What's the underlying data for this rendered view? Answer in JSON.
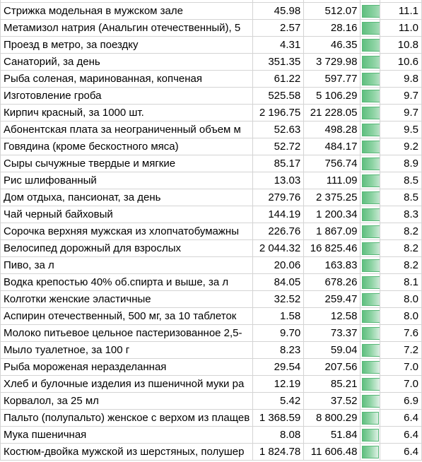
{
  "table": {
    "rows": [
      {
        "name": "Стрижка модельная в мужском зале",
        "v1": "45.98",
        "v2": "512.07",
        "ratio": 11.1,
        "ratio_label": "11.1"
      },
      {
        "name": "Метамизол натрия (Анальгин отечественный), 5",
        "v1": "2.57",
        "v2": "28.16",
        "ratio": 11.0,
        "ratio_label": "11.0"
      },
      {
        "name": "Проезд в метро, за поездку",
        "v1": "4.31",
        "v2": "46.35",
        "ratio": 10.8,
        "ratio_label": "10.8"
      },
      {
        "name": "Санаторий, за день",
        "v1": "351.35",
        "v2": "3 729.98",
        "ratio": 10.6,
        "ratio_label": "10.6"
      },
      {
        "name": "Рыба соленая, маринованная, копченая",
        "v1": "61.22",
        "v2": "597.77",
        "ratio": 9.8,
        "ratio_label": "9.8"
      },
      {
        "name": "Изготовление гроба",
        "v1": "525.58",
        "v2": "5 106.29",
        "ratio": 9.7,
        "ratio_label": "9.7"
      },
      {
        "name": "Кирпич красный, за 1000 шт.",
        "v1": "2 196.75",
        "v2": "21 228.05",
        "ratio": 9.7,
        "ratio_label": "9.7"
      },
      {
        "name": "Абонентская плата за неограниченный объем м",
        "v1": "52.63",
        "v2": "498.28",
        "ratio": 9.5,
        "ratio_label": "9.5"
      },
      {
        "name": "Говядина (кроме бескостного мяса)",
        "v1": "52.72",
        "v2": "484.17",
        "ratio": 9.2,
        "ratio_label": "9.2"
      },
      {
        "name": "Сыры сычужные твердые и мягкие",
        "v1": "85.17",
        "v2": "756.74",
        "ratio": 8.9,
        "ratio_label": "8.9"
      },
      {
        "name": "Рис шлифованный",
        "v1": "13.03",
        "v2": "111.09",
        "ratio": 8.5,
        "ratio_label": "8.5"
      },
      {
        "name": "Дом отдыха, пансионат, за день",
        "v1": "279.76",
        "v2": "2 375.25",
        "ratio": 8.5,
        "ratio_label": "8.5"
      },
      {
        "name": "Чай черный байховый",
        "v1": "144.19",
        "v2": "1 200.34",
        "ratio": 8.3,
        "ratio_label": "8.3"
      },
      {
        "name": "Сорочка верхняя мужская из хлопчатобумажны",
        "v1": "226.76",
        "v2": "1 867.09",
        "ratio": 8.2,
        "ratio_label": "8.2"
      },
      {
        "name": "Велосипед дорожный для взрослых",
        "v1": "2 044.32",
        "v2": "16 825.46",
        "ratio": 8.2,
        "ratio_label": "8.2"
      },
      {
        "name": "Пиво, за л",
        "v1": "20.06",
        "v2": "163.83",
        "ratio": 8.2,
        "ratio_label": "8.2"
      },
      {
        "name": "Водка крепостью 40% об.спирта и выше, за л",
        "v1": "84.05",
        "v2": "678.26",
        "ratio": 8.1,
        "ratio_label": "8.1"
      },
      {
        "name": "Колготки женские эластичные",
        "v1": "32.52",
        "v2": "259.47",
        "ratio": 8.0,
        "ratio_label": "8.0"
      },
      {
        "name": "Аспирин отечественный, 500 мг, за 10 таблеток",
        "v1": "1.58",
        "v2": "12.58",
        "ratio": 8.0,
        "ratio_label": "8.0"
      },
      {
        "name": "Молоко питьевое цельное пастеризованное 2,5-",
        "v1": "9.70",
        "v2": "73.37",
        "ratio": 7.6,
        "ratio_label": "7.6"
      },
      {
        "name": "Мыло туалетное, за 100 г",
        "v1": "8.23",
        "v2": "59.04",
        "ratio": 7.2,
        "ratio_label": "7.2"
      },
      {
        "name": "Рыба мороженая неразделанная",
        "v1": "29.54",
        "v2": "207.56",
        "ratio": 7.0,
        "ratio_label": "7.0"
      },
      {
        "name": "Хлеб и булочные изделия из пшеничной муки ра",
        "v1": "12.19",
        "v2": "85.21",
        "ratio": 7.0,
        "ratio_label": "7.0"
      },
      {
        "name": "Корвалол, за 25 мл",
        "v1": "5.42",
        "v2": "37.52",
        "ratio": 6.9,
        "ratio_label": "6.9"
      },
      {
        "name": "Пальто (полупальто) женское с верхом из плащев",
        "v1": "1 368.59",
        "v2": "8 800.29",
        "ratio": 6.4,
        "ratio_label": "6.4"
      },
      {
        "name": "Мука пшеничная",
        "v1": "8.08",
        "v2": "51.84",
        "ratio": 6.4,
        "ratio_label": "6.4"
      },
      {
        "name": "Костюм-двойка мужской из шерстяных, полушер",
        "v1": "1 824.78",
        "v2": "11 606.48",
        "ratio": 6.4,
        "ratio_label": "6.4"
      }
    ]
  },
  "colors": {
    "bar_fill": "#63c384",
    "grid": "#d4d4d4"
  }
}
